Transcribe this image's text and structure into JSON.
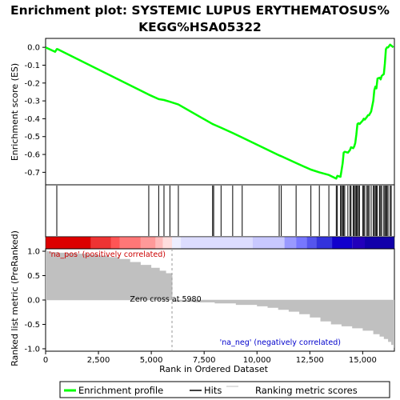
{
  "colors": {
    "es_line": "#00ff00",
    "hits": "#000000",
    "metric_fill": "#c0c0c0",
    "pos_label": "#cc0000",
    "neg_label": "#0000cc",
    "zero_cross": "#999999"
  },
  "chart_data": [
    {
      "type": "line",
      "title": "Enrichment plot: SYSTEMIC LUPUS ERYTHEMATOSUS%KEGG%HSA05322",
      "title_lines": [
        "Enrichment plot: SYSTEMIC LUPUS ERYTHEMATOSUS%",
        "KEGG%HSA05322"
      ],
      "ylabel": "Enrichment score (ES)",
      "xlim": [
        0,
        16500
      ],
      "ylim": [
        -0.77,
        0.05
      ],
      "yticks": [
        0.0,
        -0.1,
        -0.2,
        -0.3,
        -0.4,
        -0.5,
        -0.6,
        -0.7
      ],
      "ytick_labels": [
        "0.0",
        "-0.1",
        "-0.2",
        "-0.3",
        "-0.4",
        "-0.5",
        "-0.6",
        "-0.7"
      ],
      "grid": false,
      "series": [
        {
          "name": "Enrichment profile",
          "x": [
            0,
            450,
            530,
            560,
            4880,
            5350,
            5600,
            5880,
            6280,
            7900,
            7950,
            8300,
            8850,
            9300,
            11050,
            11150,
            11850,
            12550,
            12950,
            13400,
            13750,
            13800,
            13950,
            14000,
            14050,
            14100,
            14150,
            14300,
            14400,
            14450,
            14550,
            14600,
            14650,
            14700,
            14750,
            14800,
            14850,
            15000,
            15050,
            15100,
            15200,
            15250,
            15300,
            15400,
            15500,
            15550,
            15600,
            15650,
            15700,
            15800,
            15850,
            15900,
            16000,
            16050,
            16100,
            16150,
            16200,
            16300,
            16350,
            16400,
            16450
          ],
          "y": [
            0.0,
            -0.025,
            -0.01,
            -0.01,
            -0.265,
            -0.29,
            -0.295,
            -0.305,
            -0.32,
            -0.43,
            -0.432,
            -0.45,
            -0.48,
            -0.505,
            -0.605,
            -0.61,
            -0.648,
            -0.685,
            -0.7,
            -0.715,
            -0.735,
            -0.72,
            -0.725,
            -0.69,
            -0.65,
            -0.59,
            -0.585,
            -0.59,
            -0.575,
            -0.56,
            -0.565,
            -0.555,
            -0.535,
            -0.49,
            -0.43,
            -0.425,
            -0.43,
            -0.41,
            -0.4,
            -0.405,
            -0.39,
            -0.38,
            -0.38,
            -0.36,
            -0.3,
            -0.24,
            -0.22,
            -0.23,
            -0.175,
            -0.17,
            -0.18,
            -0.16,
            -0.15,
            -0.09,
            -0.01,
            0.0,
            0.0,
            0.015,
            0.01,
            0.005,
            0.0
          ]
        }
      ]
    },
    {
      "type": "scatter",
      "name": "hits",
      "series": [
        {
          "name": "Hits",
          "x": [
            530,
            4880,
            5350,
            5600,
            5880,
            6280,
            7900,
            7950,
            8300,
            8850,
            9300,
            11050,
            11150,
            11850,
            12550,
            12950,
            13400,
            13750,
            13800,
            13950,
            14000,
            14050,
            14100,
            14150,
            14300,
            14400,
            14450,
            14550,
            14600,
            14650,
            14700,
            14750,
            14800,
            14850,
            15000,
            15050,
            15100,
            15200,
            15250,
            15300,
            15400,
            15500,
            15550,
            15600,
            15650,
            15700,
            15800,
            15850,
            15900,
            16000,
            16050,
            16100,
            16150,
            16200,
            16300,
            16350
          ]
        }
      ]
    },
    {
      "type": "area",
      "ylabel": "Ranked list metric (PreRanked)",
      "xlabel": "Rank in Ordered Dataset",
      "xlim": [
        0,
        16500
      ],
      "ylim": [
        -1.05,
        1.05
      ],
      "xticks": [
        0,
        2500,
        5000,
        7500,
        10000,
        12500,
        15000
      ],
      "xtick_labels": [
        "0",
        "2,500",
        "5,000",
        "7,500",
        "10,000",
        "12,500",
        "15,000"
      ],
      "yticks": [
        1.0,
        0.5,
        0.0,
        -0.5,
        -1.0
      ],
      "ytick_labels": [
        "1.0",
        "0.5",
        "0.0",
        "-0.5",
        "-1.0"
      ],
      "series": [
        {
          "name": "Ranking metric scores",
          "x": [
            0,
            150,
            300,
            600,
            1000,
            1500,
            2000,
            2500,
            3000,
            3500,
            4000,
            4500,
            5000,
            5400,
            5700,
            5980,
            6000,
            7000,
            8000,
            9000,
            10000,
            10500,
            11000,
            11500,
            12000,
            12500,
            13000,
            13500,
            14000,
            14500,
            15000,
            15500,
            15800,
            16000,
            16200,
            16350,
            16450,
            16500
          ],
          "y": [
            1.0,
            0.99,
            0.98,
            0.97,
            0.96,
            0.95,
            0.93,
            0.91,
            0.88,
            0.84,
            0.78,
            0.72,
            0.66,
            0.6,
            0.55,
            0.5,
            -0.04,
            -0.05,
            -0.07,
            -0.1,
            -0.13,
            -0.16,
            -0.2,
            -0.24,
            -0.29,
            -0.36,
            -0.44,
            -0.5,
            -0.54,
            -0.58,
            -0.63,
            -0.7,
            -0.75,
            -0.8,
            -0.86,
            -0.92,
            -0.98,
            -1.0
          ]
        }
      ],
      "annotations": {
        "pos_label": "'na_pos' (positively correlated)",
        "neg_label": "'na_neg' (negatively correlated)",
        "zero_cross_label": "Zero cross at 5980",
        "zero_cross_x": 5980
      }
    }
  ],
  "legend": {
    "items": [
      {
        "label": "Enrichment profile",
        "color": "#00ff00"
      },
      {
        "label": "Hits",
        "color": "#000000"
      },
      {
        "label": "Ranking metric scores",
        "color": "#c0c0c0"
      }
    ]
  }
}
